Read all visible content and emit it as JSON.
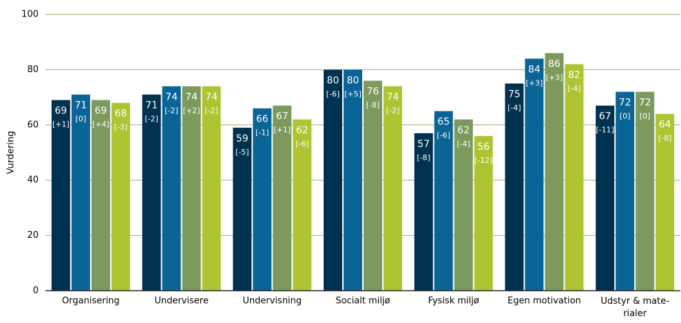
{
  "chart_data": {
    "type": "bar",
    "y_label": "Vurdering",
    "categories": [
      "Organisering",
      "Undervisere",
      "Undervisning",
      "Socialt miljø",
      "Fysisk miljø",
      "Egen motivation",
      "Udstyr & mate-\nrialer"
    ],
    "series": [
      {
        "color": "#00324f",
        "values": [
          69,
          71,
          59,
          80,
          57,
          75,
          67
        ],
        "changes": [
          "[+1]",
          "[-2]",
          "[-5]",
          "[-6]",
          "[-8]",
          "[-4]",
          "[-11]"
        ]
      },
      {
        "color": "#0b6496",
        "values": [
          71,
          74,
          66,
          80,
          65,
          84,
          72
        ],
        "changes": [
          "[0]",
          "[-2]",
          "[-1]",
          "[+5]",
          "[-6]",
          "[+3]",
          "[0]"
        ]
      },
      {
        "color": "#7c9a5e",
        "values": [
          69,
          74,
          67,
          76,
          62,
          86,
          72
        ],
        "changes": [
          "[+4]",
          "[+2]",
          "[+1]",
          "[-8]",
          "[-4]",
          "[+3]",
          "[0]"
        ]
      },
      {
        "color": "#aec433",
        "values": [
          68,
          74,
          62,
          74,
          56,
          82,
          64
        ],
        "changes": [
          "[-3]",
          "[-2]",
          "[-6]",
          "[-2]",
          "[-12]",
          "[-4]",
          "[-8]"
        ]
      }
    ],
    "ylim": [
      0,
      100
    ],
    "yticks": [
      0,
      20,
      40,
      60,
      80,
      100
    ],
    "grid": true
  }
}
